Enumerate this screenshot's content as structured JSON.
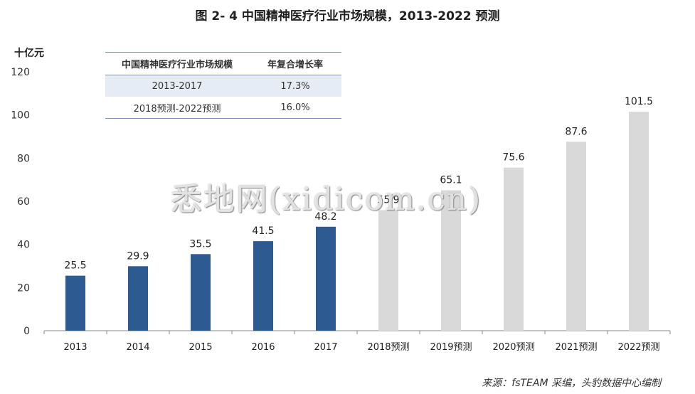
{
  "figure_title": "图 2- 4  中国精神医疗行业市场规模，2013-2022 预测",
  "source_note": "来源：fsTEAM 采编，头豹数据中心编制",
  "watermark": "悉地网(xidicom.cn)",
  "table": {
    "headers": [
      "中国精神医疗行业市场规模",
      "年复合增长率"
    ],
    "rows": [
      [
        "2013-2017",
        "17.3%"
      ],
      [
        "2018预测-2022预测",
        "16.0%"
      ]
    ]
  },
  "colors": {
    "actual": "#2e5a92",
    "forecast": "#d9d9d9",
    "axis": "#888888"
  },
  "chart_data": {
    "type": "bar",
    "ylabel": "十亿元",
    "ylim": [
      0,
      120
    ],
    "yticks": [
      0,
      20,
      40,
      60,
      80,
      100,
      120
    ],
    "categories": [
      "2013",
      "2014",
      "2015",
      "2016",
      "2017",
      "2018预测",
      "2019预测",
      "2020预测",
      "2021预测",
      "2022预测"
    ],
    "values": [
      25.5,
      29.9,
      35.5,
      41.5,
      48.2,
      55.9,
      65.1,
      75.6,
      87.6,
      101.5
    ],
    "forecast": [
      false,
      false,
      false,
      false,
      false,
      true,
      true,
      true,
      true,
      true
    ],
    "grid": false,
    "legend": "none"
  }
}
